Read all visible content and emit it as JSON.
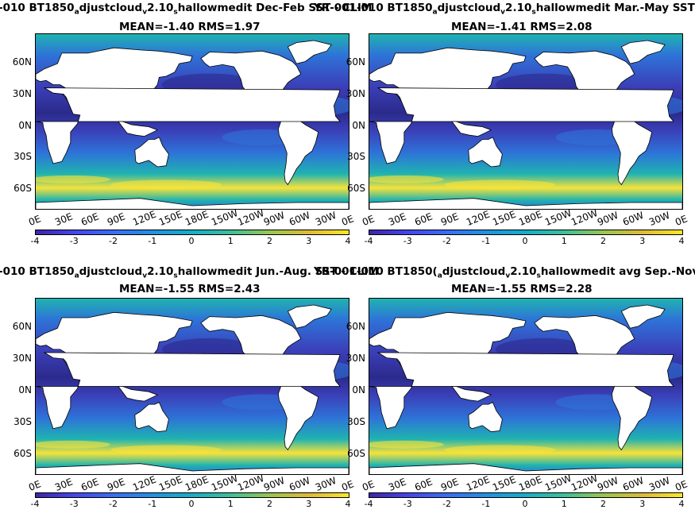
{
  "colors": {
    "ocean_cool": "#3b3fb8",
    "ocean_deep": "#2b2a8c",
    "ocean_mid": "#2e73d8",
    "ocean_teal": "#1fb3b0",
    "ocean_warm": "#f7e23a",
    "land": "#ffffff",
    "colorbar": [
      "#3d26a8",
      "#4545f0",
      "#3a6ef5",
      "#2192e3",
      "#17aec8",
      "#3fc09a",
      "#9bc64e",
      "#e0ba37",
      "#f9e829"
    ]
  },
  "chart_data": [
    {
      "type": "heatmap",
      "title_parts": [
        "-010 BT1850",
        "a",
        "djustcloud",
        "v",
        "2.10",
        "s",
        "hallowmedit  Dec-Feb SST - CLIM"
      ],
      "stats": "MEAN=-1.40   RMS=1.97",
      "yticks": [
        "60N",
        "30N",
        "0N",
        "30S",
        "60S"
      ],
      "xticks": [
        "0E",
        "30E",
        "60E",
        "90E",
        "120E",
        "150E",
        "180E",
        "150W",
        "120W",
        "90W",
        "60W",
        "30W",
        "0E"
      ],
      "colorbar_ticks": [
        "-4",
        "-3",
        "-2",
        "-1",
        "0",
        "1",
        "2",
        "3",
        "4"
      ],
      "clim": [
        -4,
        4
      ]
    },
    {
      "type": "heatmap",
      "title_parts": [
        "YR-001-010 BT1850",
        "a",
        "djustcloud",
        "v",
        "2.10",
        "s",
        "hallowmedit Mar.-May SST - C"
      ],
      "stats": "MEAN=-1.41   RMS=2.08",
      "yticks": [
        "60N",
        "30N",
        "0N",
        "30S",
        "60S"
      ],
      "xticks": [
        "0E",
        "30E",
        "60E",
        "90E",
        "120E",
        "150E",
        "180E",
        "150W",
        "120W",
        "90W",
        "60W",
        "30W",
        "0E"
      ],
      "colorbar_ticks": [
        "-4",
        "-3",
        "-2",
        "-1",
        "0",
        "1",
        "2",
        "3",
        "4"
      ],
      "clim": [
        -4,
        4
      ]
    },
    {
      "type": "heatmap",
      "title_parts": [
        "-010 BT1850",
        "a",
        "djustcloud",
        "v",
        "2.10",
        "s",
        "hallowmedit Jun.-Aug. SST - CLIM"
      ],
      "stats": "MEAN=-1.55   RMS=2.43",
      "yticks": [
        "60N",
        "30N",
        "0N",
        "30S",
        "60S"
      ],
      "xticks": [
        "0E",
        "30E",
        "60E",
        "90E",
        "120E",
        "150E",
        "180E",
        "150W",
        "120W",
        "90W",
        "60W",
        "30W",
        "0E"
      ],
      "colorbar_ticks": [
        "-4",
        "-3",
        "-2",
        "-1",
        "0",
        "1",
        "2",
        "3",
        "4"
      ],
      "clim": [
        -4,
        4
      ]
    },
    {
      "type": "heatmap",
      "title_parts": [
        "YR-001-010 BT1850(",
        "a",
        "djustcloud",
        "v",
        "2.10",
        "s",
        "hallowmedit avg Sep.-Nov. SST"
      ],
      "stats": "MEAN=-1.55   RMS=2.28",
      "yticks": [
        "60N",
        "30N",
        "0N",
        "30S",
        "60S"
      ],
      "xticks": [
        "0E",
        "30E",
        "60E",
        "90E",
        "120E",
        "150E",
        "180E",
        "150W",
        "120W",
        "90W",
        "60W",
        "30W",
        "0E"
      ],
      "colorbar_ticks": [
        "-4",
        "-3",
        "-2",
        "-1",
        "0",
        "1",
        "2",
        "3",
        "4"
      ],
      "clim": [
        -4,
        4
      ]
    }
  ]
}
